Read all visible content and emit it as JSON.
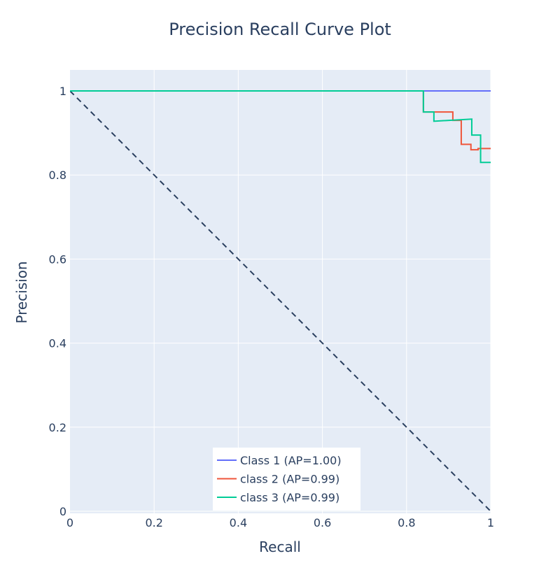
{
  "chart_data": {
    "type": "line",
    "title": "Precision Recall Curve Plot",
    "xlabel": "Recall",
    "ylabel": "Precision",
    "xlim": [
      0,
      1
    ],
    "ylim": [
      -0.005,
      1.05
    ],
    "x_ticks": [
      0,
      0.2,
      0.4,
      0.6,
      0.8,
      1
    ],
    "x_tick_labels": [
      "0",
      "0.2",
      "0.4",
      "0.6",
      "0.8",
      "1"
    ],
    "y_ticks": [
      0,
      0.2,
      0.4,
      0.6,
      0.8,
      1
    ],
    "y_tick_labels": [
      "0",
      "0.2",
      "0.4",
      "0.6",
      "0.8",
      "1"
    ],
    "grid": true,
    "legend_position": "bottom-center",
    "plot_background": "#e5ecf6",
    "series": [
      {
        "name": "Class 1 (AP=1.00)",
        "color": "#636efa",
        "line_style": "solid",
        "x": [
          0,
          1
        ],
        "y": [
          1,
          1
        ]
      },
      {
        "name": "class 2 (AP=0.99)",
        "color": "#ef553b",
        "line_style": "solid",
        "x": [
          0,
          0.84,
          0.84,
          0.91,
          0.91,
          0.93,
          0.93,
          0.953,
          0.953,
          0.97,
          0.97,
          1
        ],
        "y": [
          1,
          1,
          0.95,
          0.95,
          0.93,
          0.93,
          0.873,
          0.873,
          0.86,
          0.86,
          0.863,
          0.863
        ]
      },
      {
        "name": "class 3 (AP=0.99)",
        "color": "#00cc96",
        "line_style": "solid",
        "x": [
          0,
          0.84,
          0.84,
          0.865,
          0.865,
          0.955,
          0.955,
          0.976,
          0.976,
          1
        ],
        "y": [
          1,
          1,
          0.95,
          0.95,
          0.928,
          0.933,
          0.895,
          0.895,
          0.83,
          0.83
        ]
      }
    ],
    "reference_line": {
      "color": "#2a3f5f",
      "line_style": "dash",
      "x": [
        0,
        1
      ],
      "y": [
        1,
        0
      ]
    }
  }
}
